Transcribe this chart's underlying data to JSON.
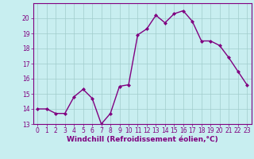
{
  "x": [
    0,
    1,
    2,
    3,
    4,
    5,
    6,
    7,
    8,
    9,
    10,
    11,
    12,
    13,
    14,
    15,
    16,
    17,
    18,
    19,
    20,
    21,
    22,
    23
  ],
  "y": [
    14.0,
    14.0,
    13.7,
    13.7,
    14.8,
    15.3,
    14.7,
    13.0,
    13.7,
    15.5,
    15.6,
    18.9,
    19.3,
    20.2,
    19.7,
    20.3,
    20.5,
    19.8,
    18.5,
    18.5,
    18.2,
    17.4,
    16.5,
    15.6
  ],
  "line_color": "#800080",
  "marker": "D",
  "marker_size": 2,
  "bg_color": "#c8eef0",
  "grid_color": "#a0cccc",
  "xlabel": "Windchill (Refroidissement éolien,°C)",
  "xlabel_color": "#800080",
  "ylim": [
    13,
    21
  ],
  "xlim": [
    -0.5,
    23.5
  ],
  "yticks": [
    13,
    14,
    15,
    16,
    17,
    18,
    19,
    20
  ],
  "xticks": [
    0,
    1,
    2,
    3,
    4,
    5,
    6,
    7,
    8,
    9,
    10,
    11,
    12,
    13,
    14,
    15,
    16,
    17,
    18,
    19,
    20,
    21,
    22,
    23
  ],
  "tick_color": "#800080",
  "tick_fontsize": 5.5,
  "xlabel_fontsize": 6.5,
  "line_width": 1.0
}
